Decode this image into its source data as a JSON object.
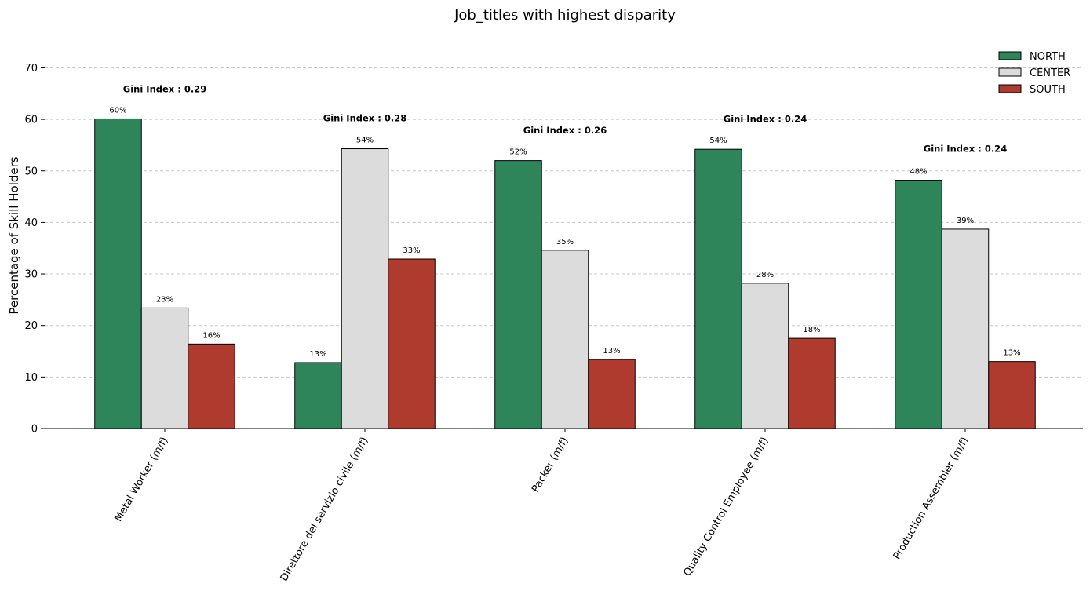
{
  "chart_data": {
    "type": "bar",
    "title": "Job_titles with highest disparity",
    "xlabel": "",
    "ylabel": "Percentage of Skill Holders",
    "ylim": [
      0,
      75
    ],
    "yticks": [
      0,
      10,
      20,
      30,
      40,
      50,
      60,
      70
    ],
    "grid": "horizontal-dashed",
    "legend_position": "top-right",
    "categories": [
      "Metal Worker (m/f)",
      "Direttore del servizio civile (m/f)",
      "Packer (m/f)",
      "Quality Control Employee (m/f)",
      "Production Assembler (m/f)"
    ],
    "series": [
      {
        "name": "NORTH",
        "color": "#2e855a",
        "values": [
          60.1,
          12.8,
          52.0,
          54.2,
          48.2
        ],
        "labels": [
          "60%",
          "13%",
          "52%",
          "54%",
          "48%"
        ]
      },
      {
        "name": "CENTER",
        "color": "#dcdcdc",
        "values": [
          23.4,
          54.3,
          34.6,
          28.2,
          38.7
        ],
        "labels": [
          "23%",
          "54%",
          "35%",
          "28%",
          "39%"
        ]
      },
      {
        "name": "SOUTH",
        "color": "#af3a2e",
        "values": [
          16.4,
          32.9,
          13.4,
          17.5,
          13.0
        ],
        "labels": [
          "16%",
          "33%",
          "13%",
          "18%",
          "13%"
        ]
      }
    ],
    "annotations": [
      {
        "text": "Gini Index :  0.29",
        "y": 65.3
      },
      {
        "text": "Gini Index :  0.28",
        "y": 59.6
      },
      {
        "text": "Gini Index :  0.26",
        "y": 57.3
      },
      {
        "text": "Gini Index :  0.24",
        "y": 59.5
      },
      {
        "text": "Gini Index :  0.24",
        "y": 53.7
      }
    ]
  }
}
